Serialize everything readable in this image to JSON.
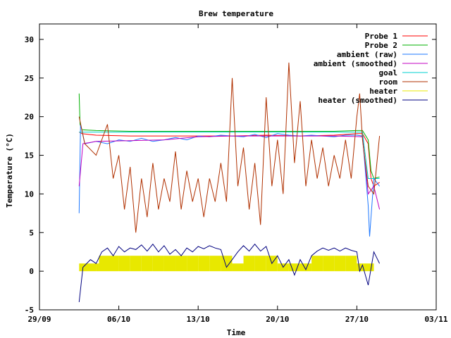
{
  "chart_data": {
    "type": "line",
    "title": "Brew temperature",
    "xlabel": "Time",
    "ylabel": "Temperature (°C)",
    "xlim": [
      "2013-09-29",
      "2013-11-03"
    ],
    "ylim": [
      -5,
      32
    ],
    "x_ticks": [
      "29/09",
      "06/10",
      "13/10",
      "20/10",
      "27/10",
      "03/11"
    ],
    "y_ticks": [
      -5,
      0,
      5,
      10,
      15,
      20,
      25,
      30
    ],
    "grid": false,
    "legend_position": "top-right",
    "series": [
      {
        "name": "Probe 1",
        "color": "#ff0000",
        "points": [
          [
            "2013-10-02T12:00",
            18.0
          ],
          [
            "2013-10-02T18:00",
            17.8
          ],
          [
            "2013-10-04",
            17.6
          ],
          [
            "2013-10-07",
            17.5
          ],
          [
            "2013-10-10",
            17.5
          ],
          [
            "2013-10-13",
            17.5
          ],
          [
            "2013-10-16",
            17.5
          ],
          [
            "2013-10-19",
            17.6
          ],
          [
            "2013-10-22",
            17.5
          ],
          [
            "2013-10-25",
            17.6
          ],
          [
            "2013-10-27",
            17.8
          ],
          [
            "2013-10-27T12:00",
            17.8
          ],
          [
            "2013-10-28",
            16.5
          ],
          [
            "2013-10-28T06:00",
            12.0
          ],
          [
            "2013-10-28T12:00",
            11.0
          ],
          [
            "2013-10-29",
            11.5
          ]
        ]
      },
      {
        "name": "Probe 2",
        "color": "#00b000",
        "points": [
          [
            "2013-10-02T12:00",
            23.0
          ],
          [
            "2013-10-02T14:00",
            19.0
          ],
          [
            "2013-10-02T18:00",
            18.3
          ],
          [
            "2013-10-04",
            18.2
          ],
          [
            "2013-10-07",
            18.1
          ],
          [
            "2013-10-10",
            18.1
          ],
          [
            "2013-10-13",
            18.1
          ],
          [
            "2013-10-16",
            18.1
          ],
          [
            "2013-10-19",
            18.1
          ],
          [
            "2013-10-22",
            18.1
          ],
          [
            "2013-10-25",
            18.1
          ],
          [
            "2013-10-27",
            18.2
          ],
          [
            "2013-10-27T12:00",
            18.2
          ],
          [
            "2013-10-28",
            17.0
          ],
          [
            "2013-10-28T06:00",
            13.0
          ],
          [
            "2013-10-28T12:00",
            12.0
          ],
          [
            "2013-10-29",
            12.2
          ]
        ]
      },
      {
        "name": "ambient (raw)",
        "color": "#1e78ff",
        "points": [
          [
            "2013-10-02T12:00",
            7.5
          ],
          [
            "2013-10-02T15:00",
            19.0
          ],
          [
            "2013-10-03",
            16.5
          ],
          [
            "2013-10-04",
            16.8
          ],
          [
            "2013-10-05",
            16.5
          ],
          [
            "2013-10-06",
            17.0
          ],
          [
            "2013-10-07",
            16.8
          ],
          [
            "2013-10-08",
            17.2
          ],
          [
            "2013-10-09",
            16.8
          ],
          [
            "2013-10-10",
            17.0
          ],
          [
            "2013-10-11",
            17.3
          ],
          [
            "2013-10-12",
            17.0
          ],
          [
            "2013-10-13",
            17.5
          ],
          [
            "2013-10-14",
            17.4
          ],
          [
            "2013-10-15",
            17.6
          ],
          [
            "2013-10-16",
            17.5
          ],
          [
            "2013-10-17",
            17.4
          ],
          [
            "2013-10-18",
            17.7
          ],
          [
            "2013-10-19",
            17.3
          ],
          [
            "2013-10-20",
            17.8
          ],
          [
            "2013-10-21",
            17.6
          ],
          [
            "2013-10-22",
            17.5
          ],
          [
            "2013-10-23",
            17.6
          ],
          [
            "2013-10-24",
            17.5
          ],
          [
            "2013-10-25",
            17.4
          ],
          [
            "2013-10-26",
            17.6
          ],
          [
            "2013-10-27",
            17.6
          ],
          [
            "2013-10-27T12:00",
            17.5
          ],
          [
            "2013-10-28",
            8.5
          ],
          [
            "2013-10-28T03:00",
            4.5
          ],
          [
            "2013-10-28T12:00",
            12.0
          ],
          [
            "2013-10-29",
            11.0
          ]
        ]
      },
      {
        "name": "ambient (smoothed)",
        "color": "#c000c0",
        "points": [
          [
            "2013-10-02T12:00",
            11.0
          ],
          [
            "2013-10-02T20:00",
            16.5
          ],
          [
            "2013-10-04",
            16.8
          ],
          [
            "2013-10-07",
            16.9
          ],
          [
            "2013-10-10",
            17.0
          ],
          [
            "2013-10-13",
            17.4
          ],
          [
            "2013-10-16",
            17.5
          ],
          [
            "2013-10-19",
            17.5
          ],
          [
            "2013-10-22",
            17.5
          ],
          [
            "2013-10-25",
            17.5
          ],
          [
            "2013-10-27T12:00",
            17.4
          ],
          [
            "2013-10-28",
            10.0
          ],
          [
            "2013-10-28T12:00",
            11.0
          ],
          [
            "2013-10-29",
            8.0
          ]
        ]
      },
      {
        "name": "goal",
        "color": "#00d0d0",
        "points": [
          [
            "2013-10-02T12:00",
            18.0
          ],
          [
            "2013-10-27T12:00",
            18.0
          ],
          [
            "2013-10-28",
            12.0
          ],
          [
            "2013-10-29",
            12.0
          ]
        ]
      },
      {
        "name": "room",
        "color": "#b03000",
        "points": [
          [
            "2013-10-02T12:00",
            20.0
          ],
          [
            "2013-10-03",
            16.5
          ],
          [
            "2013-10-04",
            15.0
          ],
          [
            "2013-10-05",
            19.0
          ],
          [
            "2013-10-05T12:00",
            12.0
          ],
          [
            "2013-10-06",
            15.0
          ],
          [
            "2013-10-06T12:00",
            8.0
          ],
          [
            "2013-10-07",
            13.5
          ],
          [
            "2013-10-07T12:00",
            5.0
          ],
          [
            "2013-10-08",
            12.0
          ],
          [
            "2013-10-08T12:00",
            7.0
          ],
          [
            "2013-10-09",
            14.0
          ],
          [
            "2013-10-09T12:00",
            8.0
          ],
          [
            "2013-10-10",
            12.0
          ],
          [
            "2013-10-10T12:00",
            9.0
          ],
          [
            "2013-10-11",
            15.5
          ],
          [
            "2013-10-11T12:00",
            8.0
          ],
          [
            "2013-10-12",
            13.0
          ],
          [
            "2013-10-12T12:00",
            9.0
          ],
          [
            "2013-10-13",
            12.0
          ],
          [
            "2013-10-13T12:00",
            7.0
          ],
          [
            "2013-10-14",
            12.0
          ],
          [
            "2013-10-14T12:00",
            9.0
          ],
          [
            "2013-10-15",
            14.0
          ],
          [
            "2013-10-15T12:00",
            9.0
          ],
          [
            "2013-10-16",
            25.0
          ],
          [
            "2013-10-16T12:00",
            11.0
          ],
          [
            "2013-10-17",
            16.0
          ],
          [
            "2013-10-17T12:00",
            8.0
          ],
          [
            "2013-10-18",
            14.0
          ],
          [
            "2013-10-18T12:00",
            6.0
          ],
          [
            "2013-10-19",
            22.5
          ],
          [
            "2013-10-19T12:00",
            11.0
          ],
          [
            "2013-10-20",
            17.0
          ],
          [
            "2013-10-20T12:00",
            10.0
          ],
          [
            "2013-10-21",
            27.0
          ],
          [
            "2013-10-21T12:00",
            14.0
          ],
          [
            "2013-10-22",
            22.0
          ],
          [
            "2013-10-22T12:00",
            11.0
          ],
          [
            "2013-10-23",
            17.0
          ],
          [
            "2013-10-23T12:00",
            12.0
          ],
          [
            "2013-10-24",
            16.0
          ],
          [
            "2013-10-24T12:00",
            11.0
          ],
          [
            "2013-10-25",
            15.0
          ],
          [
            "2013-10-25T12:00",
            12.0
          ],
          [
            "2013-10-26",
            17.0
          ],
          [
            "2013-10-26T12:00",
            12.0
          ],
          [
            "2013-10-27",
            20.0
          ],
          [
            "2013-10-27T06:00",
            23.0
          ],
          [
            "2013-10-27T12:00",
            17.0
          ],
          [
            "2013-10-28",
            11.0
          ],
          [
            "2013-10-28T12:00",
            10.0
          ],
          [
            "2013-10-29",
            17.5
          ]
        ]
      },
      {
        "name": "heater",
        "color": "#e8e800",
        "points": [
          [
            "2013-10-02T12:00",
            1
          ],
          [
            "2013-10-04",
            1
          ],
          [
            "2013-10-04T06:00",
            2
          ],
          [
            "2013-10-06",
            2
          ],
          [
            "2013-10-07",
            2
          ],
          [
            "2013-10-08",
            2
          ],
          [
            "2013-10-09",
            2
          ],
          [
            "2013-10-10",
            2
          ],
          [
            "2013-10-11",
            2
          ],
          [
            "2013-10-12",
            2
          ],
          [
            "2013-10-13",
            2
          ],
          [
            "2013-10-14",
            2
          ],
          [
            "2013-10-15",
            2
          ],
          [
            "2013-10-16",
            1
          ],
          [
            "2013-10-17",
            2
          ],
          [
            "2013-10-18",
            2
          ],
          [
            "2013-10-19",
            2
          ],
          [
            "2013-10-20",
            1
          ],
          [
            "2013-10-21",
            1
          ],
          [
            "2013-10-22",
            1
          ],
          [
            "2013-10-23",
            2
          ],
          [
            "2013-10-24",
            2
          ],
          [
            "2013-10-25",
            2
          ],
          [
            "2013-10-26",
            2
          ],
          [
            "2013-10-27",
            1
          ],
          [
            "2013-10-27T12:00",
            1
          ],
          [
            "2013-10-28",
            1
          ],
          [
            "2013-10-28T12:00",
            1
          ]
        ]
      },
      {
        "name": "heater (smoothed)",
        "color": "#000080",
        "points": [
          [
            "2013-10-02T12:00",
            -4.0
          ],
          [
            "2013-10-02T20:00",
            0.5
          ],
          [
            "2013-10-03T12:00",
            1.5
          ],
          [
            "2013-10-04",
            1.0
          ],
          [
            "2013-10-04T12:00",
            2.5
          ],
          [
            "2013-10-05",
            3.0
          ],
          [
            "2013-10-05T12:00",
            2.0
          ],
          [
            "2013-10-06",
            3.2
          ],
          [
            "2013-10-06T12:00",
            2.5
          ],
          [
            "2013-10-07",
            3.0
          ],
          [
            "2013-10-07T12:00",
            2.8
          ],
          [
            "2013-10-08",
            3.4
          ],
          [
            "2013-10-08T12:00",
            2.6
          ],
          [
            "2013-10-09",
            3.5
          ],
          [
            "2013-10-09T12:00",
            2.5
          ],
          [
            "2013-10-10",
            3.3
          ],
          [
            "2013-10-10T12:00",
            2.2
          ],
          [
            "2013-10-11",
            2.8
          ],
          [
            "2013-10-11T12:00",
            2.0
          ],
          [
            "2013-10-12",
            3.0
          ],
          [
            "2013-10-12T12:00",
            2.5
          ],
          [
            "2013-10-13",
            3.2
          ],
          [
            "2013-10-13T12:00",
            2.9
          ],
          [
            "2013-10-14",
            3.3
          ],
          [
            "2013-10-14T12:00",
            3.0
          ],
          [
            "2013-10-15",
            2.8
          ],
          [
            "2013-10-15T12:00",
            0.5
          ],
          [
            "2013-10-16",
            1.5
          ],
          [
            "2013-10-16T12:00",
            2.5
          ],
          [
            "2013-10-17",
            3.3
          ],
          [
            "2013-10-17T12:00",
            2.6
          ],
          [
            "2013-10-18",
            3.5
          ],
          [
            "2013-10-18T12:00",
            2.6
          ],
          [
            "2013-10-19",
            3.2
          ],
          [
            "2013-10-19T12:00",
            1.0
          ],
          [
            "2013-10-20",
            2.0
          ],
          [
            "2013-10-20T12:00",
            0.5
          ],
          [
            "2013-10-21",
            1.5
          ],
          [
            "2013-10-21T12:00",
            -0.5
          ],
          [
            "2013-10-22",
            1.5
          ],
          [
            "2013-10-22T12:00",
            0.2
          ],
          [
            "2013-10-23",
            2.0
          ],
          [
            "2013-10-23T12:00",
            2.6
          ],
          [
            "2013-10-24",
            3.0
          ],
          [
            "2013-10-24T12:00",
            2.7
          ],
          [
            "2013-10-25",
            3.0
          ],
          [
            "2013-10-25T12:00",
            2.6
          ],
          [
            "2013-10-26",
            3.0
          ],
          [
            "2013-10-26T12:00",
            2.7
          ],
          [
            "2013-10-27",
            2.5
          ],
          [
            "2013-10-27T06:00",
            0.0
          ],
          [
            "2013-10-27T12:00",
            0.8
          ],
          [
            "2013-10-28",
            -1.8
          ],
          [
            "2013-10-28T12:00",
            2.5
          ],
          [
            "2013-10-29",
            1.0
          ]
        ]
      }
    ]
  }
}
